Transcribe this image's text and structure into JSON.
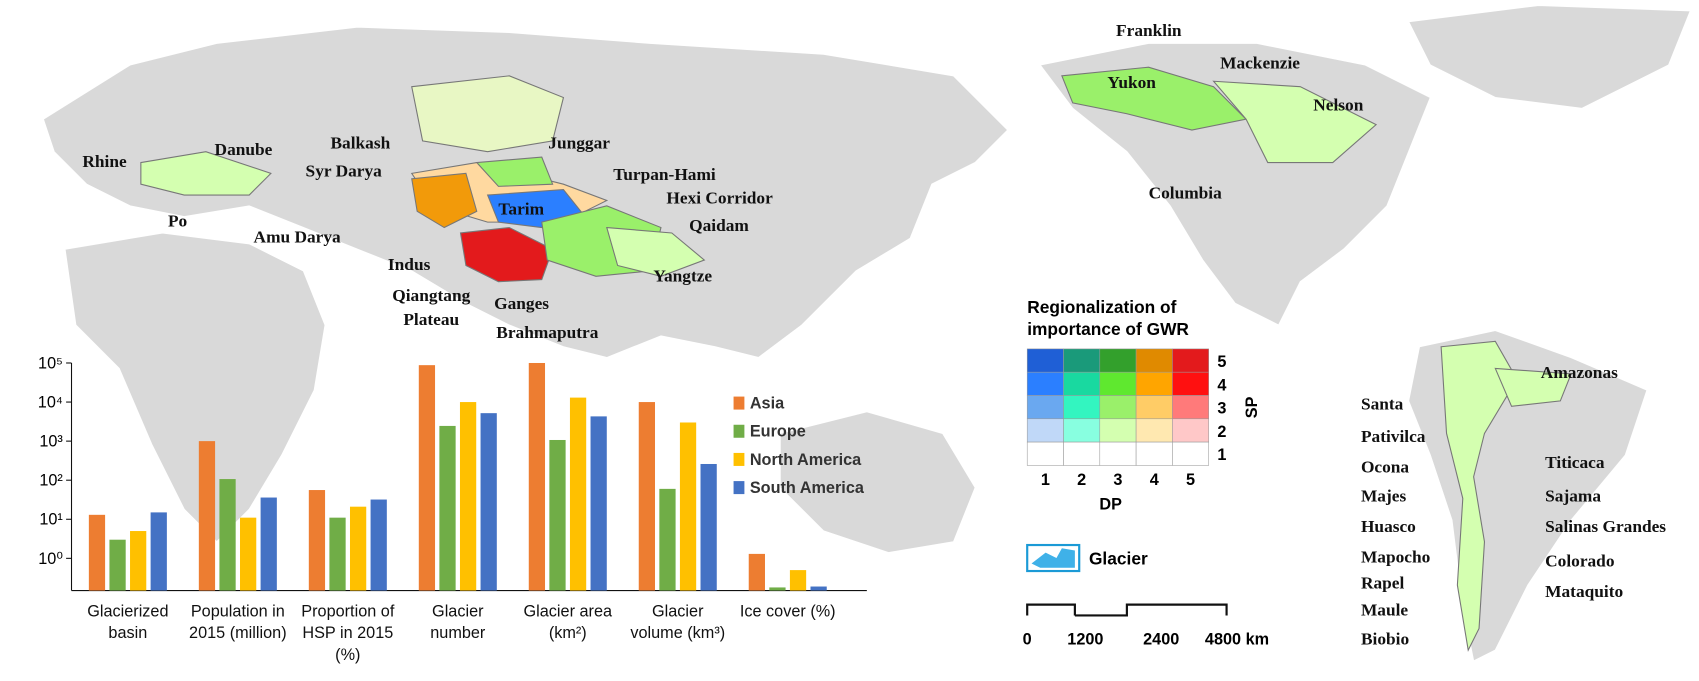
{
  "chart_data": {
    "type": "bar",
    "log_scale": true,
    "categories": [
      "Glacierized basin",
      "Population in 2015 (million)",
      "Proportion of HSP in 2015 (%)",
      "Glacier number",
      "Glacier area (km²)",
      "Glacier volume (km³)",
      "Ice cover (%)"
    ],
    "series": [
      {
        "name": "Asia",
        "color": "#ed7d31",
        "values": [
          13,
          1000,
          56,
          88000,
          100000,
          10000,
          1.3
        ]
      },
      {
        "name": "Europe",
        "color": "#70ad47",
        "values": [
          3,
          107,
          11,
          2450,
          1070,
          60,
          0.18
        ]
      },
      {
        "name": "North America",
        "color": "#ffc000",
        "values": [
          5,
          11,
          21,
          10000,
          13000,
          3000,
          0.5
        ]
      },
      {
        "name": "South America",
        "color": "#4472c4",
        "values": [
          15,
          36,
          32,
          5200,
          4300,
          260,
          0.19
        ]
      }
    ],
    "ylim": [
      0.15,
      100000
    ],
    "yticks": [
      {
        "value": 1,
        "label": "10⁰"
      },
      {
        "value": 10,
        "label": "10¹"
      },
      {
        "value": 100,
        "label": "10²"
      },
      {
        "value": 1000,
        "label": "10³"
      },
      {
        "value": 10000,
        "label": "10⁴"
      },
      {
        "value": 100000,
        "label": "10⁵"
      }
    ],
    "legend": "right"
  },
  "map": {
    "labels": [
      "Franklin",
      "Mackenzie",
      "Yukon",
      "Nelson",
      "Columbia",
      "Rhine",
      "Danube",
      "Po",
      "Balkash",
      "Junggar",
      "Syr Darya",
      "Turpan-Hami",
      "Hexi Corridor",
      "Tarim",
      "Qaidam",
      "Amu Darya",
      "Indus",
      "Yangtze",
      "Qiangtang Plateau",
      "Ganges",
      "Brahmaputra",
      "Amazonas",
      "Santa",
      "Pativilca",
      "Titicaca",
      "Ocona",
      "Majes",
      "Sajama",
      "Huasco",
      "Salinas Grandes",
      "Mapocho",
      "Colorado",
      "Rapel",
      "Mataquito",
      "Maule",
      "Biobio"
    ]
  },
  "legend": {
    "title": "Regionalization of importance of GWR",
    "dp_label": "DP",
    "sp_label": "SP",
    "dp_ticks": [
      1,
      2,
      3,
      4,
      5
    ],
    "sp_ticks": [
      5,
      4,
      3,
      2,
      1
    ],
    "colors": [
      [
        "#1f5fd6",
        "#1a9a7a",
        "#33a02c",
        "#e08a00",
        "#e31a1c"
      ],
      [
        "#2b7fff",
        "#19d9a0",
        "#5fe82f",
        "#ffa500",
        "#ff1010"
      ],
      [
        "#6aa8f0",
        "#33f5c0",
        "#9af06a",
        "#ffcc66",
        "#ff7a7a"
      ],
      [
        "#c0d8f8",
        "#88ffe0",
        "#d4ffb0",
        "#ffe8b0",
        "#ffc8c8"
      ],
      [
        "#ffffff",
        "#ffffff",
        "#ffffff",
        "#ffffff",
        "#ffffff"
      ]
    ],
    "glacier_label": "Glacier"
  },
  "scale_bar": {
    "ticks": [
      "0",
      "1200",
      "2400",
      "4800 km"
    ]
  }
}
